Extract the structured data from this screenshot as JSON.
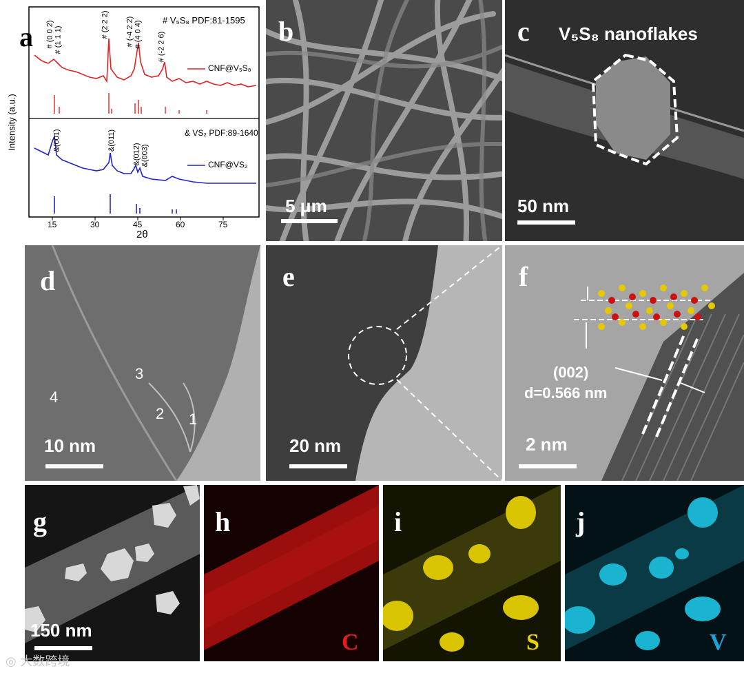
{
  "panels": {
    "a": {
      "label": "a",
      "ylabel": "Intensity (a.u.)",
      "xlabel": "2θ",
      "xticks": [
        "15",
        "30",
        "45",
        "60",
        "75"
      ],
      "top": {
        "ref_label": "# V₅S₈ PDF:81-1595",
        "legend": "CNF@V₅S₈",
        "color": "#e32222",
        "peaks": [
          "# (0 0 2)",
          "# (1 1 1)",
          "# (2 2 2)",
          "# (-4 2 2)",
          "# (4 0 4)",
          "# (-2 2 6)"
        ]
      },
      "bottom": {
        "ref_label": "& VS₂ PDF:89-1640",
        "legend": "CNF@VS₂",
        "color": "#2222cc",
        "peaks": [
          "&(001)",
          "&(011)",
          "&(012)",
          "&(003)"
        ]
      }
    },
    "b": {
      "label": "b",
      "scale": "5 μm"
    },
    "c": {
      "label": "c",
      "scale": "50 nm",
      "title": "V₅S₈ nanoflakes"
    },
    "d": {
      "label": "d",
      "scale": "10 nm",
      "layers": [
        "1",
        "2",
        "3",
        "4"
      ]
    },
    "e": {
      "label": "e",
      "scale": "20 nm"
    },
    "f": {
      "label": "f",
      "scale": "2 nm",
      "plane": "(002)",
      "dspacing": "d=0.566 nm"
    },
    "g": {
      "label": "g",
      "scale": "150 nm"
    },
    "h": {
      "label": "h",
      "element": "C",
      "color": "#e0201c"
    },
    "i": {
      "label": "i",
      "element": "S",
      "color": "#e6d200"
    },
    "j": {
      "label": "j",
      "element": "V",
      "color": "#1aa3d9"
    }
  },
  "watermark": "大数跨境"
}
